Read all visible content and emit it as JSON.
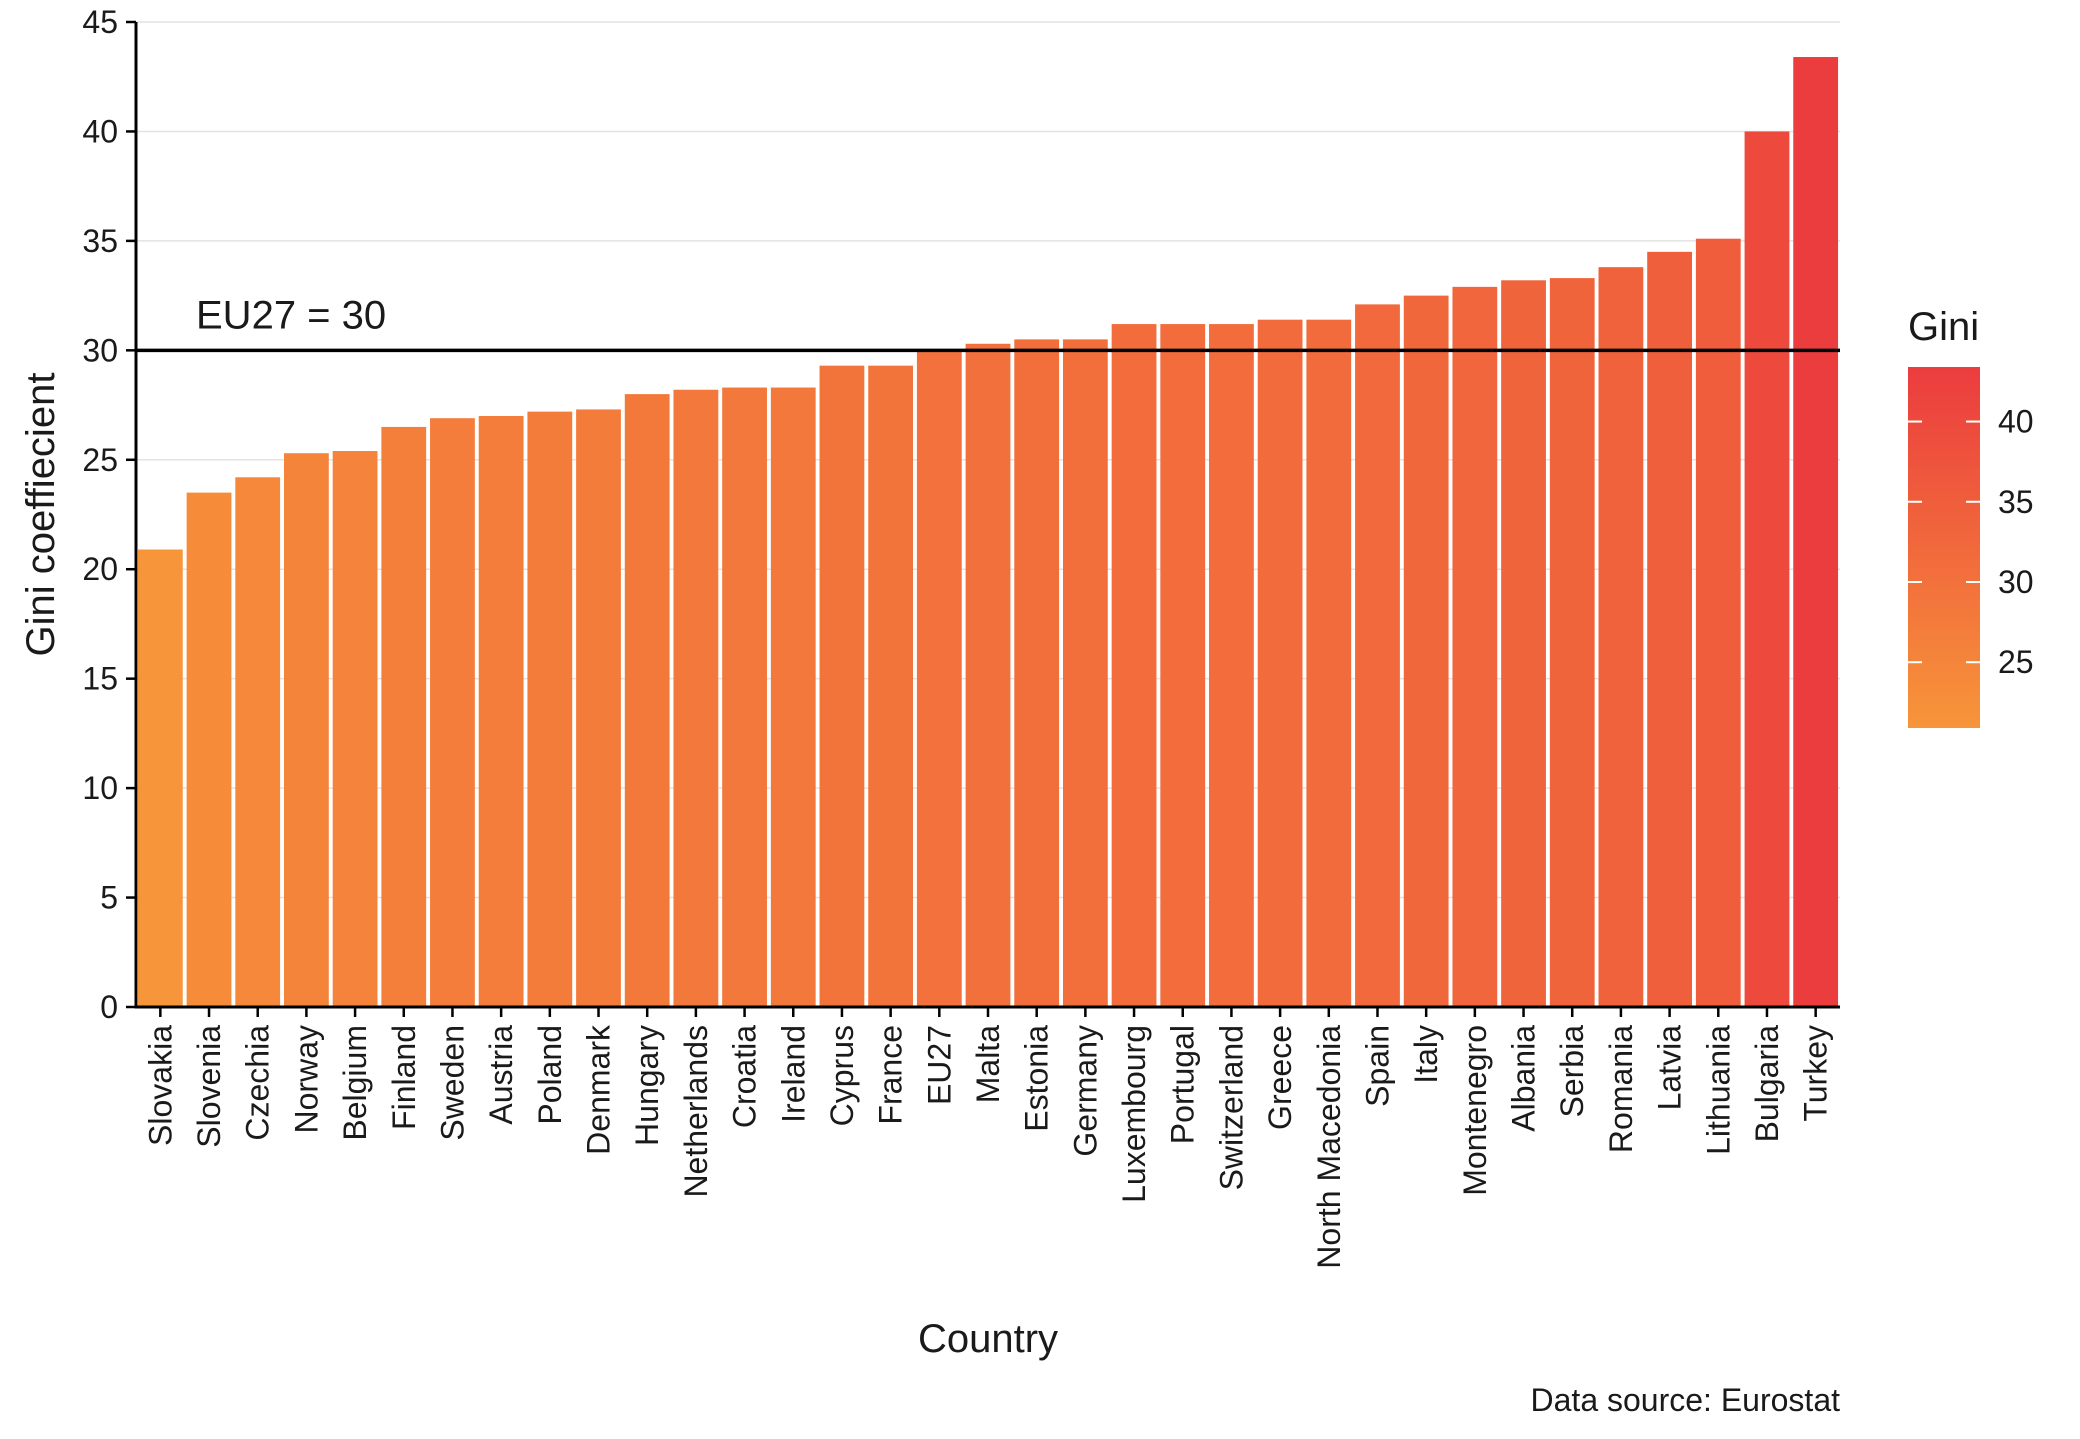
{
  "chart_data": {
    "type": "bar",
    "title": "",
    "xlabel": "Country",
    "ylabel": "Gini coeffiecient",
    "ylim": [
      0,
      45
    ],
    "yticks": [
      0,
      5,
      10,
      15,
      20,
      25,
      30,
      35,
      40,
      45
    ],
    "grid": "horizontal major gridlines",
    "categories": [
      "Slovakia",
      "Slovenia",
      "Czechia",
      "Norway",
      "Belgium",
      "Finland",
      "Sweden",
      "Austria",
      "Poland",
      "Denmark",
      "Hungary",
      "Netherlands",
      "Croatia",
      "Ireland",
      "Cyprus",
      "France",
      "EU27",
      "Malta",
      "Estonia",
      "Germany",
      "Luxembourg",
      "Portugal",
      "Switzerland",
      "Greece",
      "North Macedonia",
      "Spain",
      "Italy",
      "Montenegro",
      "Albania",
      "Serbia",
      "Romania",
      "Latvia",
      "Lithuania",
      "Bulgaria",
      "Turkey"
    ],
    "values": [
      20.9,
      23.5,
      24.2,
      25.3,
      25.4,
      26.5,
      26.9,
      27.0,
      27.2,
      27.3,
      28.0,
      28.2,
      28.3,
      28.3,
      29.3,
      29.3,
      30.0,
      30.3,
      30.5,
      30.5,
      31.2,
      31.2,
      31.2,
      31.4,
      31.4,
      32.1,
      32.5,
      32.9,
      33.2,
      33.3,
      33.8,
      34.5,
      35.1,
      40.0,
      43.4
    ],
    "reference_line": {
      "value": 30,
      "label": "EU27 = 30"
    },
    "legend": {
      "title": "Gini",
      "placement": "right",
      "type": "continuous colorbar",
      "ticks": [
        25,
        30,
        35,
        40
      ],
      "range": [
        20.9,
        43.4
      ],
      "color_low": "#f7953a",
      "color_high": "#eb3c3e"
    },
    "caption": "Data source: Eurostat"
  }
}
